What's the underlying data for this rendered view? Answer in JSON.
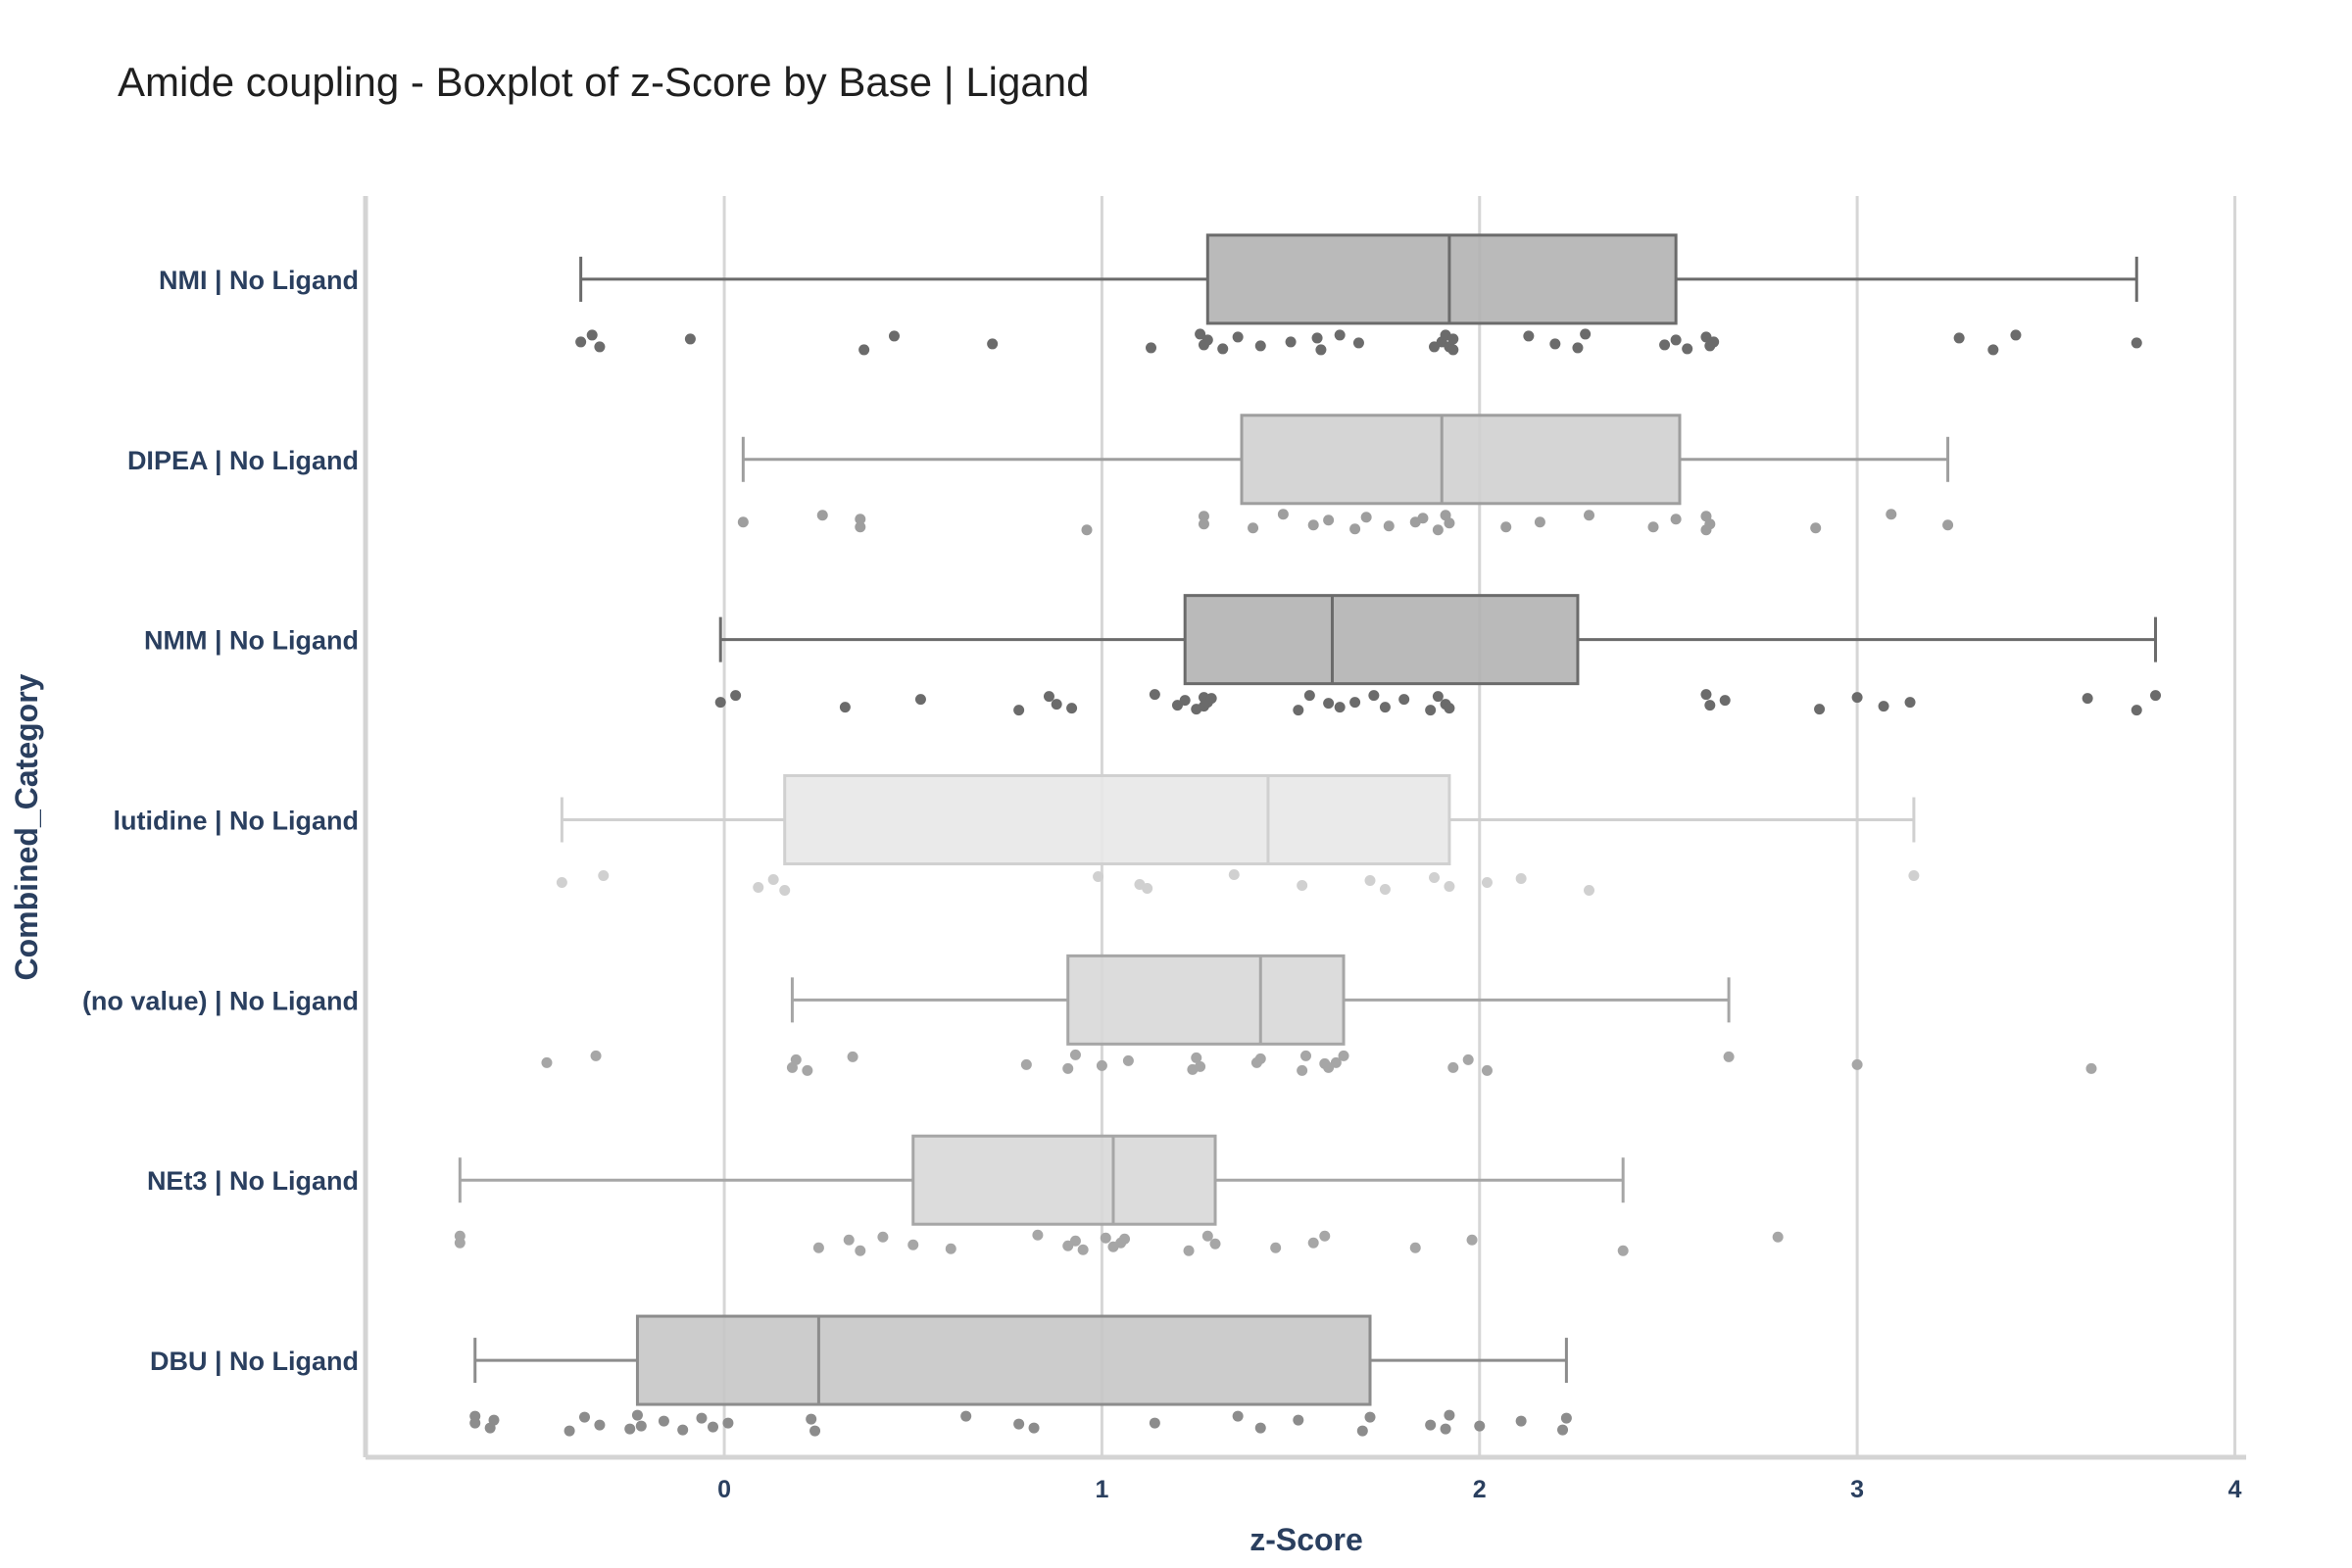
{
  "chart_data": {
    "type": "box",
    "title": "Amide coupling - Boxplot of z-Score by Base | Ligand",
    "xlabel": "z-Score",
    "ylabel": "Combined_Category",
    "xlim": [
      -0.95,
      4.03
    ],
    "xticks": [
      0,
      1,
      2,
      3,
      4
    ],
    "grid": true,
    "orientation": "horizontal",
    "categories": [
      {
        "name": "NMI | No Ligand",
        "color": "#6b6b6b",
        "fill": "#b3b3b3",
        "min": -0.38,
        "q1": 1.28,
        "median": 1.92,
        "q3": 2.52,
        "max": 3.74,
        "points": [
          -0.38,
          -0.35,
          -0.33,
          -0.09,
          0.37,
          0.45,
          0.71,
          1.13,
          1.26,
          1.27,
          1.28,
          1.32,
          1.36,
          1.42,
          1.5,
          1.57,
          1.58,
          1.63,
          1.68,
          1.88,
          1.9,
          1.91,
          1.92,
          1.93,
          1.93,
          2.13,
          2.2,
          2.26,
          2.28,
          2.49,
          2.52,
          2.55,
          2.6,
          2.61,
          2.62,
          3.27,
          3.36,
          3.42,
          3.74
        ]
      },
      {
        "name": "DIPEA | No Ligand",
        "color": "#9e9e9e",
        "fill": "#d0d0d0",
        "min": 0.05,
        "q1": 1.37,
        "median": 1.9,
        "q3": 2.53,
        "max": 3.24,
        "points": [
          0.05,
          0.26,
          0.36,
          0.36,
          0.96,
          1.27,
          1.27,
          1.4,
          1.48,
          1.56,
          1.6,
          1.67,
          1.7,
          1.76,
          1.83,
          1.85,
          1.89,
          1.91,
          1.92,
          2.07,
          2.16,
          2.29,
          2.46,
          2.52,
          2.6,
          2.6,
          2.61,
          2.89,
          3.09,
          3.24
        ]
      },
      {
        "name": "NMM | No Ligand",
        "color": "#6b6b6b",
        "fill": "#b3b3b3",
        "min": -0.01,
        "q1": 1.22,
        "median": 1.61,
        "q3": 2.26,
        "max": 3.79,
        "points": [
          -0.01,
          0.03,
          0.32,
          0.52,
          0.78,
          0.86,
          0.88,
          0.92,
          1.14,
          1.2,
          1.22,
          1.25,
          1.27,
          1.27,
          1.28,
          1.29,
          1.52,
          1.55,
          1.6,
          1.63,
          1.67,
          1.72,
          1.75,
          1.8,
          1.87,
          1.89,
          1.91,
          1.92,
          2.6,
          2.61,
          2.65,
          2.9,
          3.0,
          3.07,
          3.14,
          3.61,
          3.74,
          3.79
        ]
      },
      {
        "name": "lutidine | No Ligand",
        "color": "#d0d0d0",
        "fill": "#e8e8e8",
        "min": -0.43,
        "q1": 0.16,
        "median": 1.44,
        "q3": 1.92,
        "max": 3.15,
        "points": [
          -0.43,
          -0.32,
          0.09,
          0.13,
          0.16,
          0.99,
          1.1,
          1.12,
          1.35,
          1.53,
          1.71,
          1.75,
          1.88,
          1.92,
          2.02,
          2.11,
          2.29,
          3.15
        ]
      },
      {
        "name": "(no value) | No Ligand",
        "color": "#a6a6a6",
        "fill": "#d8d8d8",
        "min": 0.18,
        "q1": 0.91,
        "median": 1.42,
        "q3": 1.64,
        "max": 2.66,
        "points": [
          -0.47,
          -0.34,
          0.18,
          0.19,
          0.22,
          0.34,
          0.8,
          0.91,
          0.93,
          1.0,
          1.07,
          1.24,
          1.25,
          1.26,
          1.41,
          1.42,
          1.53,
          1.54,
          1.59,
          1.6,
          1.62,
          1.64,
          1.93,
          1.97,
          2.02,
          2.66,
          3.0,
          3.62
        ]
      },
      {
        "name": "NEt3 | No Ligand",
        "color": "#a6a6a6",
        "fill": "#d8d8d8",
        "min": -0.7,
        "q1": 0.5,
        "median": 1.03,
        "q3": 1.3,
        "max": 2.38,
        "points": [
          -0.7,
          -0.7,
          0.25,
          0.33,
          0.36,
          0.42,
          0.5,
          0.6,
          0.83,
          0.91,
          0.93,
          0.95,
          1.01,
          1.03,
          1.05,
          1.06,
          1.23,
          1.28,
          1.3,
          1.46,
          1.56,
          1.59,
          1.83,
          1.98,
          2.38,
          2.79
        ]
      },
      {
        "name": "DBU | No Ligand",
        "color": "#8c8c8c",
        "fill": "#c6c6c6",
        "min": -0.66,
        "q1": -0.23,
        "median": 0.25,
        "q3": 1.71,
        "max": 2.23,
        "points": [
          -0.66,
          -0.66,
          -0.62,
          -0.61,
          -0.41,
          -0.37,
          -0.33,
          -0.25,
          -0.23,
          -0.22,
          -0.16,
          -0.11,
          -0.06,
          -0.03,
          0.01,
          0.23,
          0.24,
          0.64,
          0.78,
          0.82,
          1.14,
          1.36,
          1.42,
          1.52,
          1.69,
          1.71,
          1.87,
          1.91,
          1.92,
          2.0,
          2.11,
          2.22,
          2.23
        ]
      }
    ]
  }
}
